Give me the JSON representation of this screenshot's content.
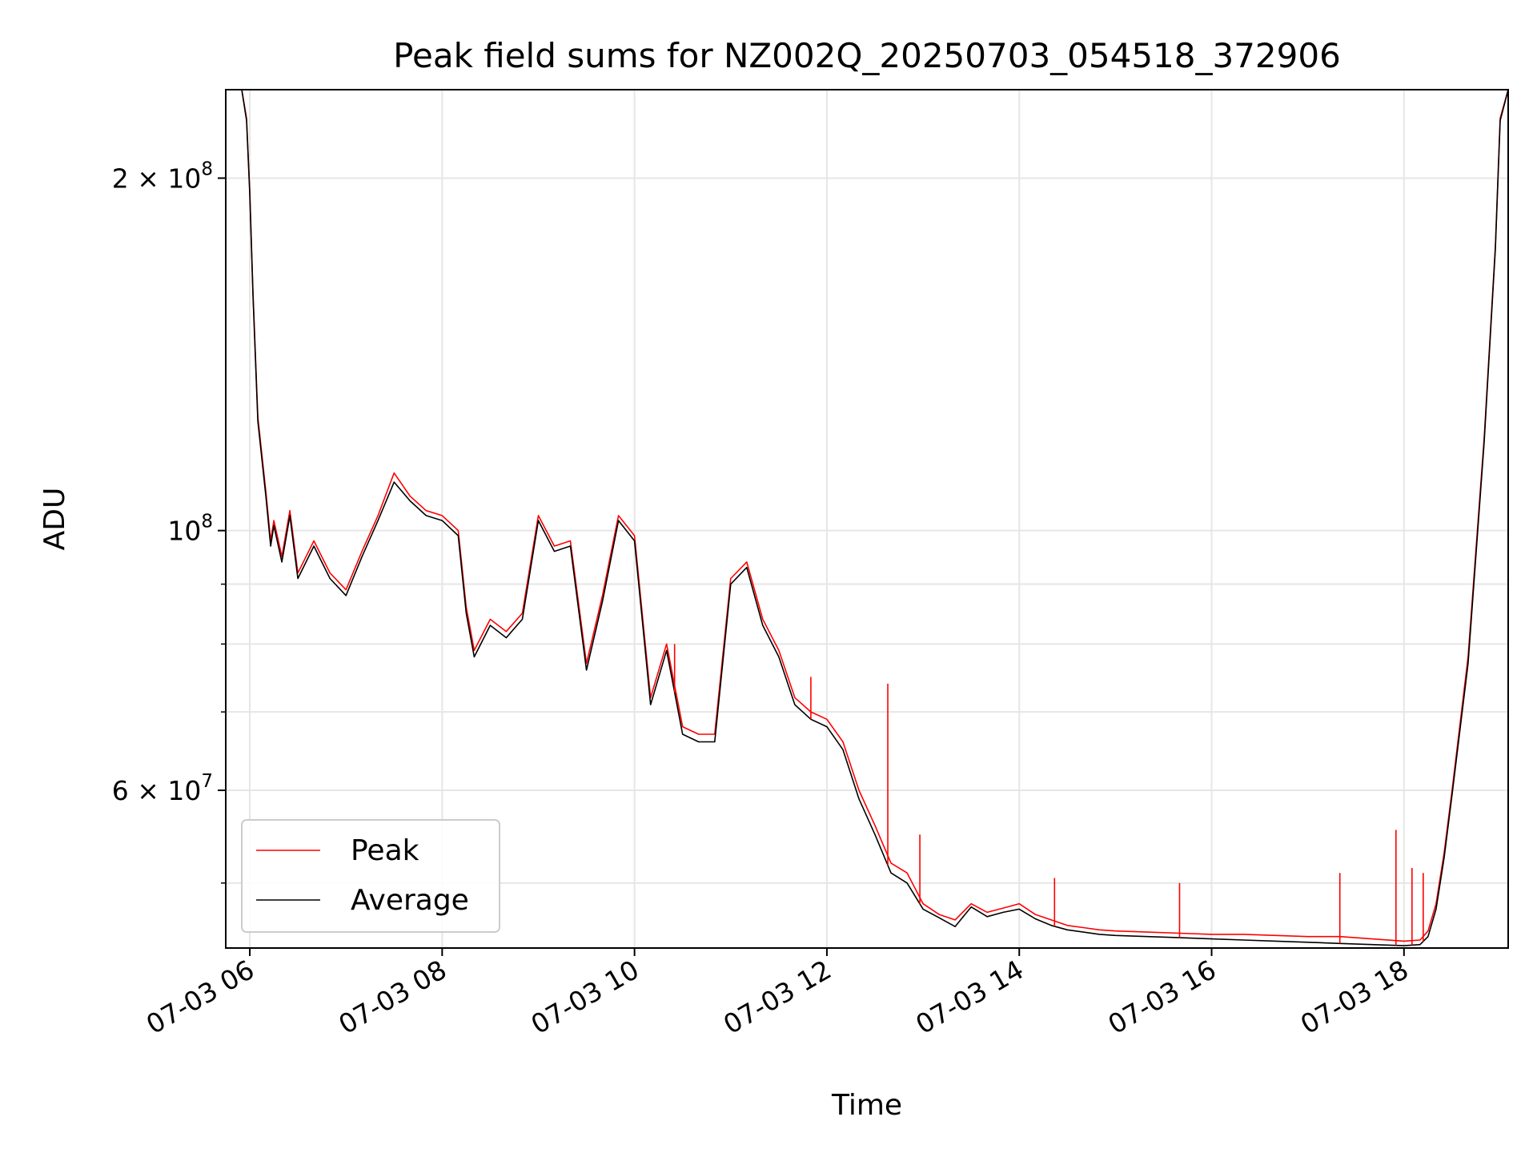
{
  "chart_data": {
    "type": "line",
    "title": "Peak field sums for NZ002Q_20250703_054518_372906",
    "xlabel": "Time",
    "ylabel": "ADU",
    "y_scale": "log",
    "x_unit": "time (2025-07-03, HH:MM)",
    "xlim": [
      "05:45",
      "19:05"
    ],
    "ylim": [
      44000000,
      238000000
    ],
    "grid": true,
    "legend_position": "lower-left",
    "x_ticks": [
      {
        "t": "06:00",
        "label": "07-03 06"
      },
      {
        "t": "08:00",
        "label": "07-03 08"
      },
      {
        "t": "10:00",
        "label": "07-03 10"
      },
      {
        "t": "12:00",
        "label": "07-03 12"
      },
      {
        "t": "14:00",
        "label": "07-03 14"
      },
      {
        "t": "16:00",
        "label": "07-03 16"
      },
      {
        "t": "18:00",
        "label": "07-03 18"
      }
    ],
    "y_ticks": [
      {
        "value": 60000000,
        "mantissa": "6",
        "exponent": "7"
      },
      {
        "value": 100000000,
        "mantissa": "",
        "exponent": "8"
      },
      {
        "value": 200000000,
        "mantissa": "2",
        "exponent": "8"
      }
    ],
    "y_minor_ticks": [
      50000000,
      70000000,
      80000000,
      90000000
    ],
    "series": [
      {
        "name": "Peak",
        "color": "#ff0000",
        "x": [
          "05:45",
          "05:55",
          "05:58",
          "06:00",
          "06:02",
          "06:05",
          "06:10",
          "06:13",
          "06:15",
          "06:20",
          "06:25",
          "06:30",
          "06:40",
          "06:50",
          "07:00",
          "07:10",
          "07:20",
          "07:30",
          "07:40",
          "07:50",
          "08:00",
          "08:10",
          "08:15",
          "08:20",
          "08:30",
          "08:40",
          "08:50",
          "09:00",
          "09:10",
          "09:20",
          "09:30",
          "09:40",
          "09:50",
          "10:00",
          "10:10",
          "10:20",
          "10:30",
          "10:40",
          "10:50",
          "11:00",
          "11:10",
          "11:20",
          "11:30",
          "11:40",
          "11:50",
          "12:00",
          "12:10",
          "12:20",
          "12:30",
          "12:40",
          "12:50",
          "13:00",
          "13:10",
          "13:20",
          "13:30",
          "13:40",
          "13:50",
          "14:00",
          "14:10",
          "14:20",
          "14:30",
          "14:40",
          "14:50",
          "15:00",
          "15:20",
          "15:40",
          "16:00",
          "16:20",
          "16:40",
          "17:00",
          "17:20",
          "17:40",
          "18:00",
          "18:10",
          "18:15",
          "18:20",
          "18:25",
          "18:30",
          "18:40",
          "18:50",
          "18:57",
          "19:00",
          "19:05"
        ],
        "y": [
          238000000,
          238000000,
          225000000,
          195000000,
          160000000,
          125000000,
          108000000,
          98000000,
          102000000,
          95000000,
          104000000,
          92000000,
          98000000,
          92000000,
          89000000,
          96000000,
          103000000,
          112000000,
          107000000,
          104000000,
          103000000,
          100000000,
          86000000,
          79000000,
          84000000,
          82000000,
          85000000,
          103000000,
          97000000,
          98000000,
          77000000,
          88000000,
          103000000,
          99000000,
          72000000,
          80000000,
          68000000,
          67000000,
          67000000,
          91000000,
          94000000,
          84000000,
          79000000,
          72000000,
          70000000,
          69000000,
          66000000,
          60000000,
          56000000,
          52000000,
          51000000,
          48000000,
          47000000,
          46500000,
          48000000,
          47200000,
          47600000,
          48000000,
          47000000,
          46500000,
          46000000,
          45800000,
          45600000,
          45500000,
          45400000,
          45300000,
          45200000,
          45200000,
          45100000,
          45000000,
          45000000,
          44800000,
          44600000,
          44700000,
          45500000,
          48000000,
          53000000,
          60000000,
          78000000,
          120000000,
          175000000,
          225000000,
          238000000
        ]
      },
      {
        "name": "Average",
        "color": "#000000",
        "x": [
          "05:45",
          "05:55",
          "05:58",
          "06:00",
          "06:02",
          "06:05",
          "06:10",
          "06:13",
          "06:15",
          "06:20",
          "06:25",
          "06:30",
          "06:40",
          "06:50",
          "07:00",
          "07:10",
          "07:20",
          "07:30",
          "07:40",
          "07:50",
          "08:00",
          "08:10",
          "08:15",
          "08:20",
          "08:30",
          "08:40",
          "08:50",
          "09:00",
          "09:10",
          "09:20",
          "09:30",
          "09:40",
          "09:50",
          "10:00",
          "10:10",
          "10:20",
          "10:30",
          "10:40",
          "10:50",
          "11:00",
          "11:10",
          "11:20",
          "11:30",
          "11:40",
          "11:50",
          "12:00",
          "12:10",
          "12:20",
          "12:30",
          "12:40",
          "12:50",
          "13:00",
          "13:10",
          "13:20",
          "13:30",
          "13:40",
          "13:50",
          "14:00",
          "14:10",
          "14:20",
          "14:30",
          "14:40",
          "14:50",
          "15:00",
          "15:20",
          "15:40",
          "16:00",
          "16:20",
          "16:40",
          "17:00",
          "17:20",
          "17:40",
          "18:00",
          "18:10",
          "18:15",
          "18:20",
          "18:25",
          "18:30",
          "18:40",
          "18:50",
          "18:57",
          "19:00",
          "19:05"
        ],
        "y": [
          238000000,
          238000000,
          224000000,
          194000000,
          159000000,
          124000000,
          107000000,
          97000000,
          101000000,
          94000000,
          103000000,
          91000000,
          97000000,
          91000000,
          88000000,
          95000000,
          102000000,
          110000000,
          106000000,
          103000000,
          102000000,
          99000000,
          85000000,
          78000000,
          83000000,
          81000000,
          84000000,
          102000000,
          96000000,
          97000000,
          76000000,
          87000000,
          102000000,
          98000000,
          71000000,
          79000000,
          67000000,
          66000000,
          66000000,
          90000000,
          93000000,
          83000000,
          78000000,
          71000000,
          69000000,
          68000000,
          65000000,
          59000000,
          55000000,
          51000000,
          50000000,
          47500000,
          46700000,
          45900000,
          47700000,
          46800000,
          47200000,
          47500000,
          46600000,
          46000000,
          45600000,
          45400000,
          45200000,
          45100000,
          45000000,
          44900000,
          44800000,
          44700000,
          44600000,
          44500000,
          44400000,
          44300000,
          44200000,
          44300000,
          45000000,
          47500000,
          52500000,
          59500000,
          77000000,
          119000000,
          174000000,
          224000000,
          238000000
        ]
      }
    ],
    "peak_spikes": [
      {
        "x": "10:25",
        "y": 80000000
      },
      {
        "x": "11:50",
        "y": 75000000
      },
      {
        "x": "12:38",
        "y": 74000000
      },
      {
        "x": "12:58",
        "y": 55000000
      },
      {
        "x": "14:22",
        "y": 50500000
      },
      {
        "x": "15:40",
        "y": 50000000
      },
      {
        "x": "17:20",
        "y": 51000000
      },
      {
        "x": "17:55",
        "y": 55500000
      },
      {
        "x": "18:05",
        "y": 51500000
      },
      {
        "x": "18:12",
        "y": 51000000
      }
    ]
  }
}
